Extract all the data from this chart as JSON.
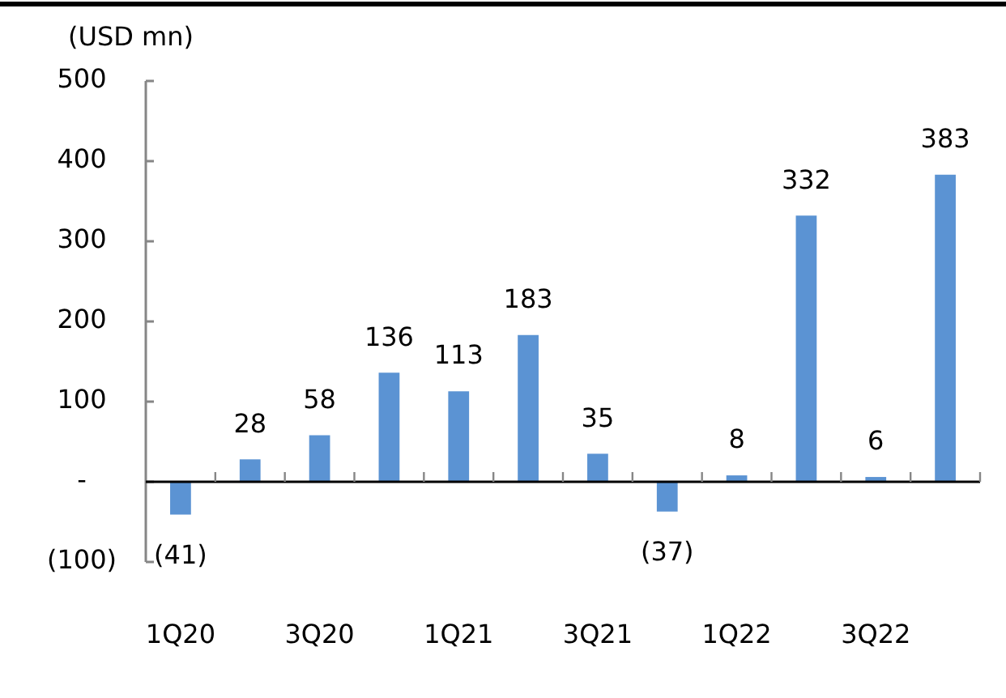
{
  "chart_data": {
    "type": "bar",
    "ylabel": "(USD mn)",
    "categories": [
      "1Q20",
      null,
      "3Q20",
      null,
      "1Q21",
      null,
      "3Q21",
      null,
      "1Q22",
      null,
      "3Q22",
      null
    ],
    "values": [
      -41,
      28,
      58,
      136,
      113,
      183,
      35,
      -37,
      8,
      332,
      6,
      383
    ],
    "value_labels": [
      "(41)",
      "28",
      "58",
      "136",
      "113",
      "183",
      "35",
      "(37)",
      "8",
      "332",
      "6",
      "383"
    ],
    "color": "#5b93d3",
    "ylim": [
      -100,
      500
    ],
    "yticks": [
      {
        "value": -100,
        "label": "(100)"
      },
      {
        "value": 0,
        "label": "-"
      },
      100,
      200,
      300,
      400,
      500
    ]
  }
}
